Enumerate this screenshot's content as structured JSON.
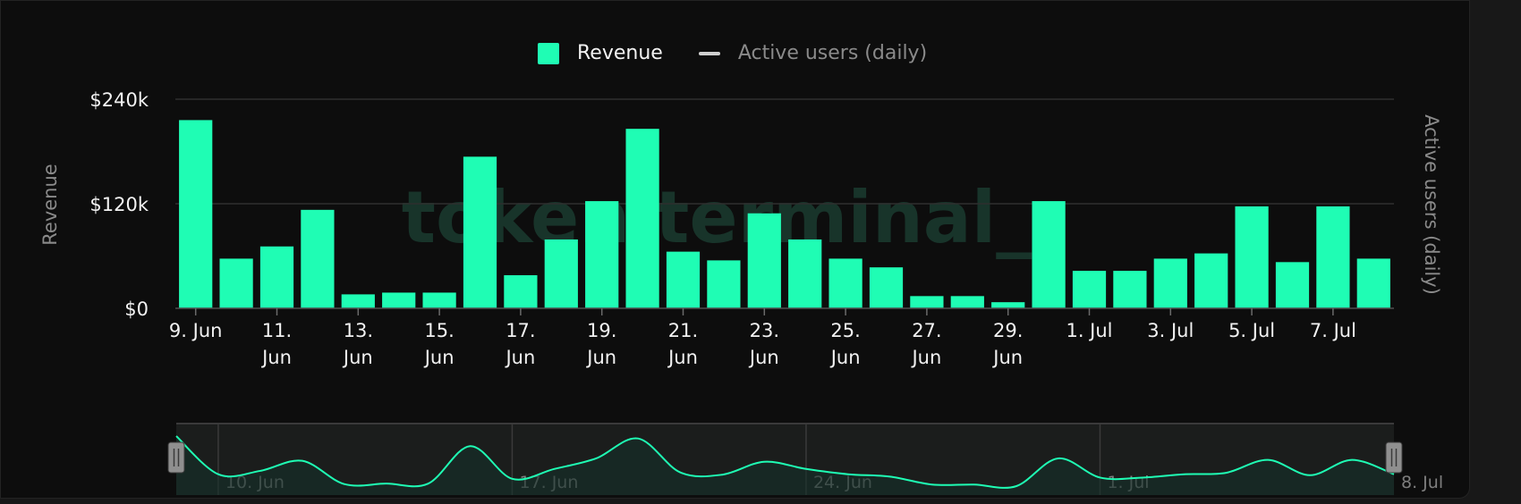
{
  "colors": {
    "accent": "#1ffdb4",
    "background": "#0d0d0d",
    "grid": "#2e2e2e",
    "text": "#f2f2f2",
    "muted": "#8a8a8a"
  },
  "legend": {
    "revenue_label": "Revenue",
    "users_label": "Active users (daily)"
  },
  "watermark": "token terminal_",
  "chart_data": {
    "type": "bar",
    "y_axis_left": {
      "label": "Revenue",
      "ticks": [
        "$0",
        "$120k",
        "$240k"
      ],
      "tick_values": [
        0,
        120000,
        240000
      ],
      "ylim": [
        0,
        240000
      ]
    },
    "y_axis_right": {
      "label": "Active users (daily)"
    },
    "grid": true,
    "legend_position": "top-center",
    "x_ticks": [
      {
        "index": 0,
        "lines": [
          "9. Jun"
        ]
      },
      {
        "index": 2,
        "lines": [
          "11.",
          "Jun"
        ]
      },
      {
        "index": 4,
        "lines": [
          "13.",
          "Jun"
        ]
      },
      {
        "index": 6,
        "lines": [
          "15.",
          "Jun"
        ]
      },
      {
        "index": 8,
        "lines": [
          "17.",
          "Jun"
        ]
      },
      {
        "index": 10,
        "lines": [
          "19.",
          "Jun"
        ]
      },
      {
        "index": 12,
        "lines": [
          "21.",
          "Jun"
        ]
      },
      {
        "index": 14,
        "lines": [
          "23.",
          "Jun"
        ]
      },
      {
        "index": 16,
        "lines": [
          "25.",
          "Jun"
        ]
      },
      {
        "index": 18,
        "lines": [
          "27.",
          "Jun"
        ]
      },
      {
        "index": 20,
        "lines": [
          "29.",
          "Jun"
        ]
      },
      {
        "index": 22,
        "lines": [
          "1. Jul"
        ]
      },
      {
        "index": 24,
        "lines": [
          "3. Jul"
        ]
      },
      {
        "index": 26,
        "lines": [
          "5. Jul"
        ]
      },
      {
        "index": 28,
        "lines": [
          "7. Jul"
        ]
      }
    ],
    "categories": [
      "2024-06-09",
      "2024-06-10",
      "2024-06-11",
      "2024-06-12",
      "2024-06-13",
      "2024-06-14",
      "2024-06-15",
      "2024-06-16",
      "2024-06-17",
      "2024-06-18",
      "2024-06-19",
      "2024-06-20",
      "2024-06-21",
      "2024-06-22",
      "2024-06-23",
      "2024-06-24",
      "2024-06-25",
      "2024-06-26",
      "2024-06-27",
      "2024-06-28",
      "2024-06-29",
      "2024-06-30",
      "2024-07-01",
      "2024-07-02",
      "2024-07-03",
      "2024-07-04",
      "2024-07-05",
      "2024-07-06",
      "2024-07-07",
      "2024-07-08"
    ],
    "series": [
      {
        "name": "Revenue",
        "values": [
          216000,
          57000,
          71000,
          113000,
          16000,
          18000,
          18000,
          174000,
          38000,
          79000,
          123000,
          206000,
          65000,
          55000,
          109000,
          79000,
          57000,
          47000,
          14000,
          14000,
          7000,
          123000,
          43000,
          43000,
          57000,
          63000,
          117000,
          53000,
          117000,
          57000
        ]
      }
    ],
    "navigator": {
      "labels": [
        "10. Jun",
        "17. Jun",
        "24. Jun",
        "1. Jul",
        "8. Jul"
      ]
    }
  }
}
